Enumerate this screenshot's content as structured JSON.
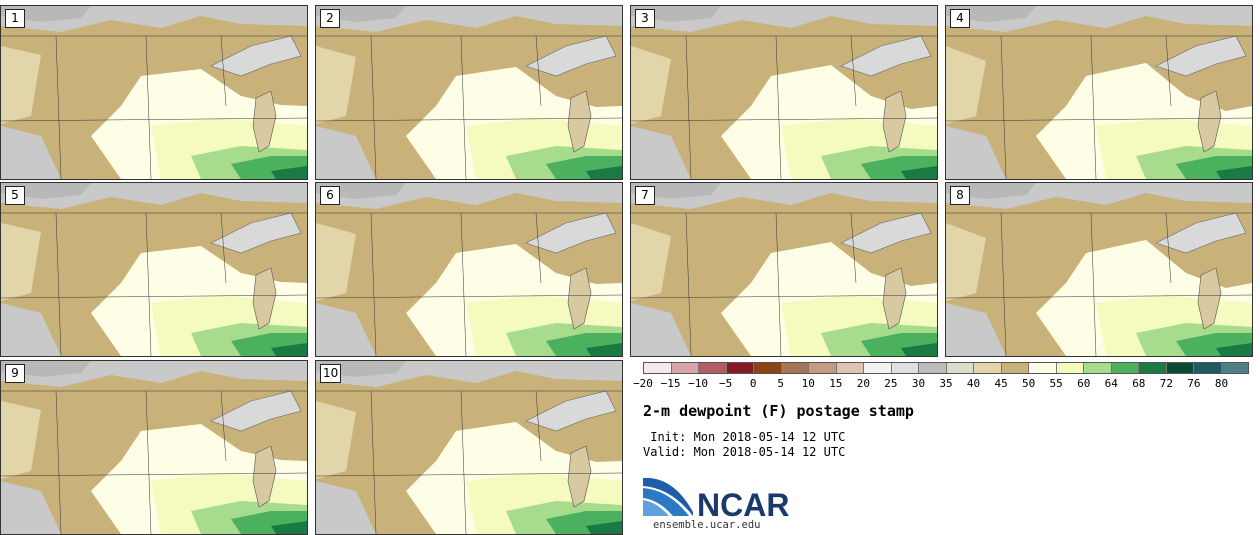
{
  "stamps": [
    {
      "label": "1"
    },
    {
      "label": "2"
    },
    {
      "label": "3"
    },
    {
      "label": "4"
    },
    {
      "label": "5"
    },
    {
      "label": "6"
    },
    {
      "label": "7"
    },
    {
      "label": "8"
    },
    {
      "label": "9"
    },
    {
      "label": "10"
    }
  ],
  "colorbar": {
    "colors": [
      "#f6e8ec",
      "#d7a4ac",
      "#b25c66",
      "#861822",
      "#8b4513",
      "#a87656",
      "#c59a82",
      "#ddc3b4",
      "#f2f2f2",
      "#e0e0e0",
      "#bdbdbd",
      "#dcdccc",
      "#e2d5aa",
      "#c8b27a",
      "#fefee6",
      "#f5fabe",
      "#a6dc8c",
      "#4cb15e",
      "#1b7a44",
      "#0d4a32",
      "#1e5a60",
      "#4f7f84"
    ],
    "ticks": [
      "−20",
      "−15",
      "−10",
      "−5",
      "0",
      "5",
      "10",
      "15",
      "20",
      "25",
      "30",
      "35",
      "40",
      "45",
      "50",
      "55",
      "60",
      "64",
      "68",
      "72",
      "76",
      "80"
    ]
  },
  "title": "2-m dewpoint (F) postage stamp",
  "init": " Init: Mon 2018-05-14 12 UTC",
  "valid": "Valid: Mon 2018-05-14 12 UTC",
  "logo_text": "NCAR",
  "url": "ensemble.ucar.edu"
}
